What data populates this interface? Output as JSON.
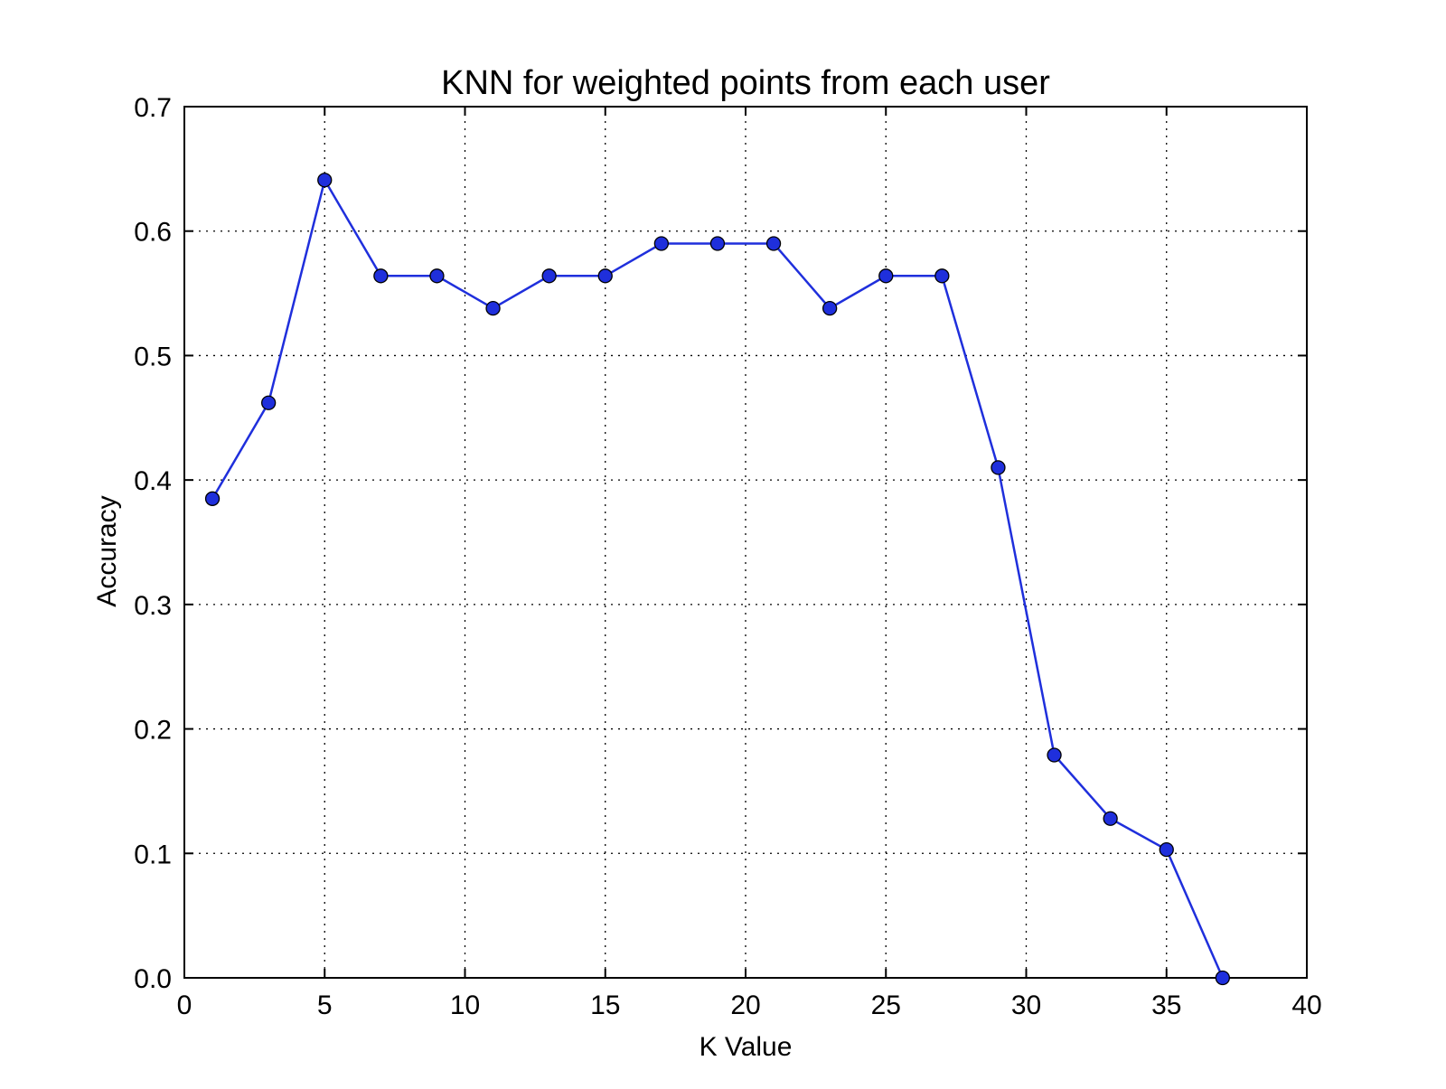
{
  "chart_data": {
    "type": "line",
    "title": "KNN for weighted points from each user",
    "xlabel": "K Value",
    "ylabel": "Accuracy",
    "xlim": [
      0,
      40
    ],
    "ylim": [
      0,
      0.7
    ],
    "xticks": [
      "0",
      "5",
      "10",
      "15",
      "20",
      "25",
      "30",
      "35",
      "40"
    ],
    "yticks": [
      "0.0",
      "0.1",
      "0.2",
      "0.3",
      "0.4",
      "0.5",
      "0.6",
      "0.7"
    ],
    "grid": true,
    "series": [
      {
        "color": "#1f2fdc",
        "marker": "circle",
        "x": [
          1,
          3,
          5,
          7,
          9,
          11,
          13,
          15,
          17,
          19,
          21,
          23,
          25,
          27,
          29,
          31,
          33,
          35,
          37
        ],
        "y": [
          0.385,
          0.462,
          0.641,
          0.564,
          0.564,
          0.538,
          0.564,
          0.564,
          0.59,
          0.59,
          0.59,
          0.538,
          0.564,
          0.564,
          0.41,
          0.179,
          0.128,
          0.103,
          0.0
        ]
      }
    ]
  }
}
